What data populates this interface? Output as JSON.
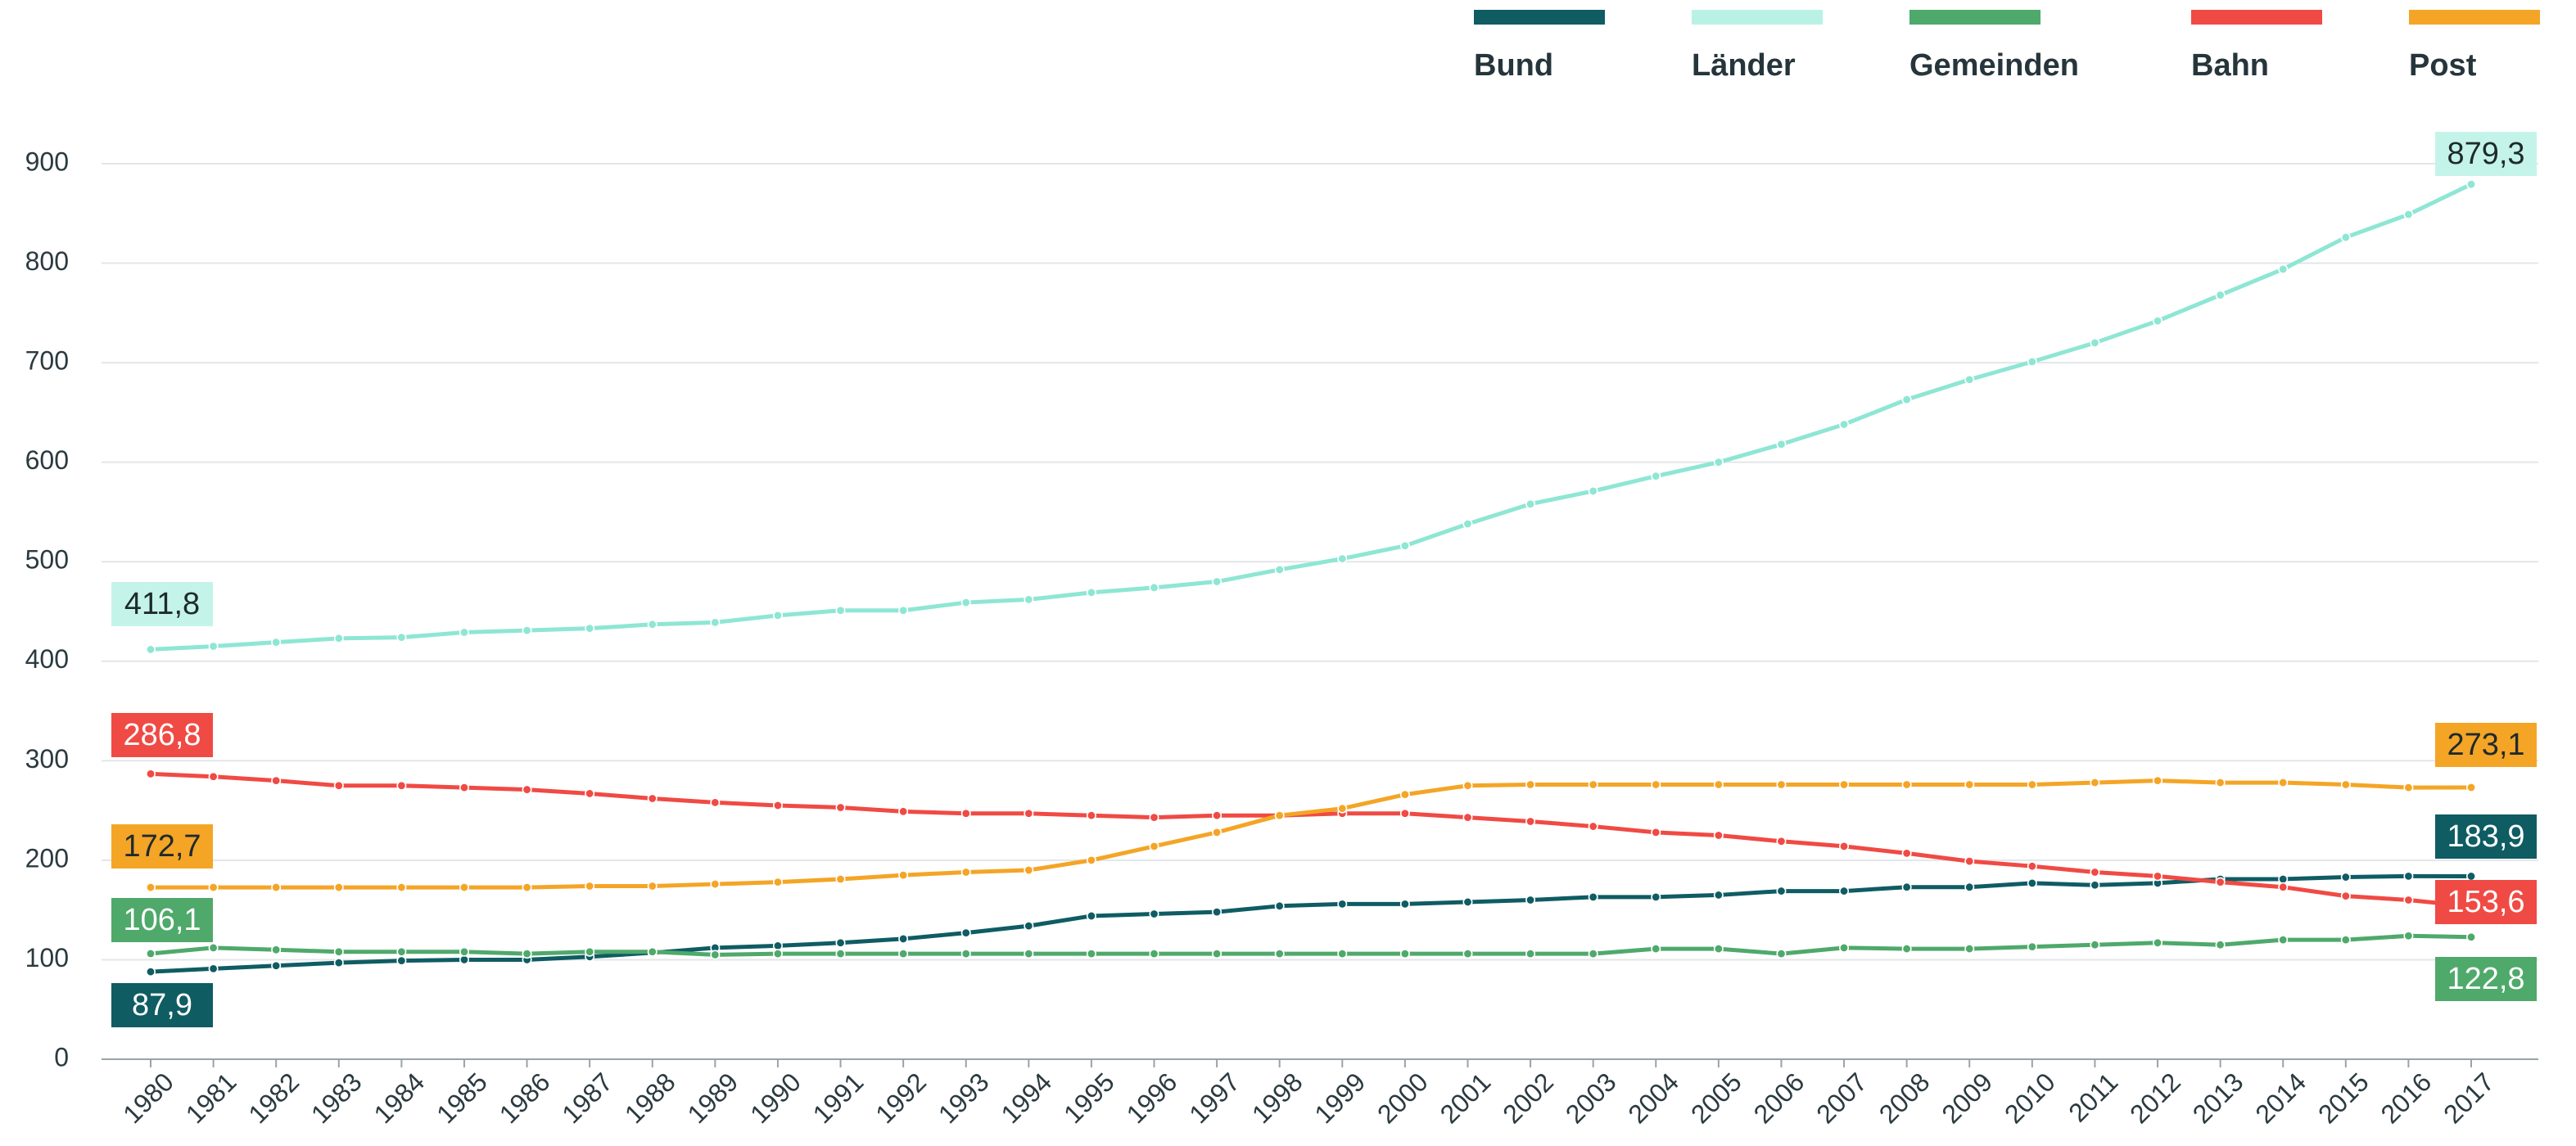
{
  "chart_data": {
    "type": "line",
    "categories": [
      "1980",
      "1981",
      "1982",
      "1983",
      "1984",
      "1985",
      "1986",
      "1987",
      "1988",
      "1989",
      "1990",
      "1991",
      "1992",
      "1993",
      "1994",
      "1995",
      "1996",
      "1997",
      "1998",
      "1999",
      "2000",
      "2001",
      "2002",
      "2003",
      "2004",
      "2005",
      "2006",
      "2007",
      "2008",
      "2009",
      "2010",
      "2011",
      "2012",
      "2013",
      "2014",
      "2015",
      "2016",
      "2017"
    ],
    "ylim": [
      0,
      900
    ],
    "yticks": [
      0,
      100,
      200,
      300,
      400,
      500,
      600,
      700,
      800,
      900
    ],
    "grid": true,
    "legend": "top-right",
    "series": [
      {
        "name": "Bund",
        "color": "#0f5c63",
        "values": [
          87.9,
          91,
          94,
          97,
          99,
          100,
          100,
          103,
          107,
          112,
          114,
          117,
          121,
          127,
          134,
          144,
          146,
          148,
          154,
          156,
          156,
          158,
          160,
          163,
          163,
          165,
          169,
          169,
          173,
          173,
          177,
          175,
          177,
          181,
          181,
          183,
          184,
          183.9
        ],
        "value_labels": [
          "87,9",
          null,
          null,
          null,
          null,
          null,
          null,
          null,
          null,
          null,
          null,
          null,
          null,
          null,
          null,
          null,
          null,
          null,
          null,
          null,
          null,
          null,
          null,
          null,
          null,
          null,
          null,
          null,
          null,
          null,
          null,
          null,
          null,
          null,
          null,
          null,
          null,
          "183,9"
        ]
      },
      {
        "name": "Länder",
        "color": "#8ee6d4",
        "values": [
          411.8,
          415,
          419,
          423,
          424,
          429,
          431,
          433,
          437,
          439,
          446,
          451,
          451,
          459,
          462,
          469,
          474,
          480,
          492,
          503,
          516,
          538,
          558,
          571,
          586,
          600,
          618,
          638,
          663,
          683,
          701,
          720,
          742,
          768,
          794,
          826,
          849,
          879.3
        ],
        "value_labels": [
          "411,8",
          null,
          null,
          null,
          null,
          null,
          null,
          null,
          null,
          null,
          null,
          null,
          null,
          null,
          null,
          null,
          null,
          null,
          null,
          null,
          null,
          null,
          null,
          null,
          null,
          null,
          null,
          null,
          null,
          null,
          null,
          null,
          null,
          null,
          null,
          null,
          null,
          "879,3"
        ]
      },
      {
        "name": "Gemeinden",
        "color": "#4fa96b",
        "values": [
          106.1,
          112,
          110,
          108,
          108,
          108,
          106,
          108,
          108,
          105,
          106,
          106,
          106,
          106,
          106,
          106,
          106,
          106,
          106,
          106,
          106,
          106,
          106,
          106,
          111,
          111,
          106,
          112,
          111,
          111,
          113,
          115,
          117,
          115,
          120,
          120,
          124,
          122.8
        ],
        "value_labels": [
          "106,1",
          null,
          null,
          null,
          null,
          null,
          null,
          null,
          null,
          null,
          null,
          null,
          null,
          null,
          null,
          null,
          null,
          null,
          null,
          null,
          null,
          null,
          null,
          null,
          null,
          null,
          null,
          null,
          null,
          null,
          null,
          null,
          null,
          null,
          null,
          null,
          null,
          "122,8"
        ]
      },
      {
        "name": "Bahn",
        "color": "#f04a44",
        "values": [
          286.8,
          284,
          280,
          275,
          275,
          273,
          271,
          267,
          262,
          258,
          255,
          253,
          249,
          247,
          247,
          245,
          243,
          245,
          245,
          247,
          247,
          243,
          239,
          234,
          228,
          225,
          219,
          214,
          207,
          199,
          194,
          188,
          184,
          178,
          173,
          164,
          160,
          153.6
        ],
        "value_labels": [
          "286,8",
          null,
          null,
          null,
          null,
          null,
          null,
          null,
          null,
          null,
          null,
          null,
          null,
          null,
          null,
          null,
          null,
          null,
          null,
          null,
          null,
          null,
          null,
          null,
          null,
          null,
          null,
          null,
          null,
          null,
          null,
          null,
          null,
          null,
          null,
          null,
          null,
          "153,6"
        ]
      },
      {
        "name": "Post",
        "color": "#f4a526",
        "values": [
          172.7,
          172.7,
          172.7,
          172.7,
          172.7,
          172.7,
          172.7,
          174,
          174,
          176,
          178,
          181,
          185,
          188,
          190,
          200,
          214,
          228,
          245,
          252,
          266,
          275,
          276,
          276,
          276,
          276,
          276,
          276,
          276,
          276,
          276,
          278,
          280,
          278,
          278,
          276,
          273,
          273.1
        ],
        "value_labels": [
          "172,7",
          null,
          null,
          null,
          null,
          null,
          null,
          null,
          null,
          null,
          null,
          null,
          null,
          null,
          null,
          null,
          null,
          null,
          null,
          null,
          null,
          null,
          null,
          null,
          null,
          null,
          null,
          null,
          null,
          null,
          null,
          null,
          null,
          null,
          null,
          null,
          null,
          "273,1"
        ]
      }
    ]
  }
}
